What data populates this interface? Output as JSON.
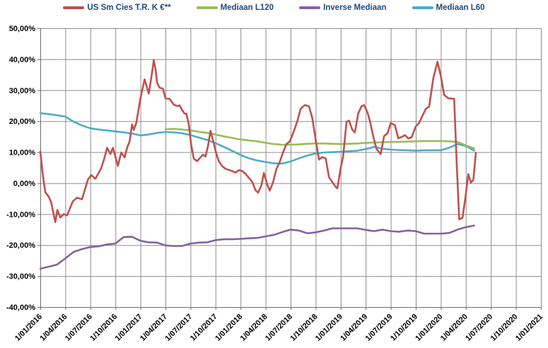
{
  "legend": {
    "position": "top",
    "items": [
      {
        "label": "US Sm Cies T.R. K €**",
        "color": "#C0504D"
      },
      {
        "label": "Mediaan L120",
        "color": "#9BBB59"
      },
      {
        "label": "Inverse Mediaan",
        "color": "#8064A2"
      },
      {
        "label": "Mediaan L60",
        "color": "#4BACC6"
      }
    ]
  },
  "colors": {
    "red_series": "#C0504D",
    "green_series": "#9BBB59",
    "purple_series": "#8064A2",
    "teal_series": "#4BACC6",
    "gridline": "#8C8C8C",
    "axis": "#6E6E6E",
    "tick_text": "#000000",
    "legend_text": "#1F497D",
    "background": "#FFFFFF"
  },
  "chart_data": {
    "type": "line",
    "title": "",
    "grid": true,
    "legend_position": "top",
    "x_unit": "months since 1/01/2016 (0 = 1/01/2016, 60 = 1/01/2021)",
    "x_range_months": [
      0,
      60
    ],
    "ylim": [
      -40,
      50
    ],
    "y_step": 10,
    "y_tick_labels": [
      "50,00%",
      "40,00%",
      "30,00%",
      "20,00%",
      "10,00%",
      "0,00%",
      "-10,00%",
      "-20,00%",
      "-30,00%",
      "-40,00%"
    ],
    "x_tick_labels": [
      "1/01/2016",
      "1/04/2016",
      "1/07/2016",
      "1/10/2016",
      "1/01/2017",
      "1/04/2017",
      "1/07/2017",
      "1/10/2017",
      "1/01/2018",
      "1/04/2018",
      "1/07/2018",
      "1/10/2018",
      "1/01/2019",
      "1/04/2019",
      "1/07/2019",
      "1/10/2019",
      "1/01/2020",
      "1/04/2020",
      "1/07/2020",
      "1/10/2020",
      "1/01/2021"
    ],
    "x_tick_step_months": 3,
    "series": [
      {
        "name": "Inverse Mediaan",
        "color": "#8064A2",
        "start_month": 0,
        "step_months": 1,
        "values": [
          -27.6,
          -27.0,
          -26.3,
          -24.3,
          -22.2,
          -21.3,
          -20.6,
          -20.4,
          -19.8,
          -19.5,
          -17.4,
          -17.3,
          -18.6,
          -19.1,
          -19.2,
          -20.1,
          -20.3,
          -20.3,
          -19.5,
          -19.2,
          -19.1,
          -18.4,
          -18.1,
          -18.1,
          -18.0,
          -17.8,
          -17.7,
          -17.2,
          -16.7,
          -15.8,
          -15.0,
          -15.3,
          -16.2,
          -15.9,
          -15.3,
          -14.6,
          -14.6,
          -14.6,
          -14.6,
          -15.1,
          -15.5,
          -15.0,
          -15.5,
          -15.7,
          -15.3,
          -15.5,
          -16.3,
          -16.3,
          -16.3,
          -16.1,
          -15.0,
          -14.2,
          -13.7
        ]
      },
      {
        "name": "Mediaan L60",
        "color": "#4BACC6",
        "start_month": 0,
        "step_months": 1,
        "values": [
          22.6,
          22.3,
          21.9,
          21.5,
          19.8,
          18.6,
          17.7,
          17.3,
          17.0,
          16.7,
          16.4,
          16.0,
          15.4,
          15.7,
          16.2,
          16.5,
          16.4,
          16.1,
          15.5,
          14.7,
          13.9,
          12.9,
          11.7,
          10.4,
          9.1,
          8.0,
          7.3,
          6.8,
          6.4,
          6.3,
          7.0,
          8.0,
          8.9,
          9.6,
          9.9,
          10.0,
          10.1,
          10.3,
          10.5,
          11.0,
          11.7,
          11.1,
          10.8,
          10.7,
          10.6,
          10.5,
          10.6,
          10.6,
          10.6,
          11.4,
          12.6,
          12.0,
          10.5
        ]
      },
      {
        "name": "Mediaan L120",
        "color": "#9BBB59",
        "start_month": 15,
        "step_months": 1,
        "values": [
          17.4,
          17.5,
          17.3,
          17.0,
          16.6,
          16.2,
          15.7,
          15.1,
          14.6,
          14.1,
          13.8,
          13.5,
          13.0,
          12.6,
          12.4,
          12.4,
          12.5,
          12.7,
          12.8,
          12.8,
          12.7,
          12.6,
          12.7,
          12.8,
          13.0,
          13.1,
          13.2,
          13.3,
          13.3,
          13.4,
          13.5,
          13.6,
          13.6,
          13.6,
          13.5,
          13.3,
          12.2,
          11.2
        ]
      },
      {
        "name": "US Sm Cies T.R. K €**",
        "color": "#C0504D",
        "points": [
          [
            0,
            10.2
          ],
          [
            0.3,
            2.7
          ],
          [
            0.6,
            -3.0
          ],
          [
            1,
            -4.3
          ],
          [
            1.3,
            -6.1
          ],
          [
            1.8,
            -12.6
          ],
          [
            2.05,
            -8.7
          ],
          [
            2.4,
            -11.1
          ],
          [
            2.8,
            -10.0
          ],
          [
            3.2,
            -10.4
          ],
          [
            3.9,
            -5.9
          ],
          [
            4.4,
            -4.7
          ],
          [
            5,
            -5.2
          ],
          [
            5.7,
            1.1
          ],
          [
            6.1,
            2.6
          ],
          [
            6.6,
            1.4
          ],
          [
            7.3,
            4.8
          ],
          [
            7.7,
            8.3
          ],
          [
            8,
            11.4
          ],
          [
            8.4,
            9.4
          ],
          [
            8.7,
            11.4
          ],
          [
            9.3,
            5.6
          ],
          [
            9.7,
            9.9
          ],
          [
            10.1,
            8.3
          ],
          [
            10.4,
            11.4
          ],
          [
            10.7,
            13.5
          ],
          [
            11,
            19.0
          ],
          [
            11.2,
            17.2
          ],
          [
            11.5,
            19.4
          ],
          [
            12,
            27.4
          ],
          [
            12.5,
            33.5
          ],
          [
            13,
            28.9
          ],
          [
            13.4,
            35.8
          ],
          [
            13.6,
            39.7
          ],
          [
            13.8,
            37.0
          ],
          [
            14,
            32.4
          ],
          [
            14.3,
            30.8
          ],
          [
            14.7,
            30.5
          ],
          [
            15,
            27.4
          ],
          [
            15.5,
            27.2
          ],
          [
            16,
            25.3
          ],
          [
            16.4,
            24.9
          ],
          [
            16.7,
            25.1
          ],
          [
            17,
            23.6
          ],
          [
            17.3,
            22.4
          ],
          [
            17.5,
            22.4
          ],
          [
            17.8,
            19.0
          ],
          [
            18.1,
            12.0
          ],
          [
            18.4,
            7.9
          ],
          [
            18.8,
            7.1
          ],
          [
            19.1,
            8.0
          ],
          [
            19.5,
            9.2
          ],
          [
            19.8,
            8.6
          ],
          [
            20.1,
            12.0
          ],
          [
            20.4,
            16.9
          ],
          [
            20.8,
            12.8
          ],
          [
            21.1,
            9.4
          ],
          [
            21.4,
            7.1
          ],
          [
            21.8,
            5.5
          ],
          [
            22.2,
            4.6
          ],
          [
            22.6,
            4.3
          ],
          [
            23,
            3.9
          ],
          [
            23.4,
            3.4
          ],
          [
            23.8,
            4.2
          ],
          [
            24.2,
            3.9
          ],
          [
            24.6,
            3.0
          ],
          [
            25,
            1.7
          ],
          [
            25.4,
            0.4
          ],
          [
            25.8,
            -2.3
          ],
          [
            26.1,
            -3.1
          ],
          [
            26.5,
            -0.7
          ],
          [
            26.8,
            3.3
          ],
          [
            27.2,
            -0.5
          ],
          [
            27.5,
            -2.4
          ],
          [
            27.9,
            0.3
          ],
          [
            28.3,
            4.6
          ],
          [
            28.7,
            6.9
          ],
          [
            29.1,
            10.0
          ],
          [
            29.5,
            12.6
          ],
          [
            29.9,
            13.5
          ],
          [
            30.3,
            16.1
          ],
          [
            30.8,
            19.9
          ],
          [
            31.2,
            24.0
          ],
          [
            31.7,
            25.2
          ],
          [
            32.2,
            24.8
          ],
          [
            32.6,
            21.0
          ],
          [
            33,
            14.0
          ],
          [
            33.4,
            7.6
          ],
          [
            33.8,
            8.4
          ],
          [
            34.2,
            8.0
          ],
          [
            34.6,
            1.9
          ],
          [
            35.4,
            -1.2
          ],
          [
            35.6,
            -1.7
          ],
          [
            36,
            4.9
          ],
          [
            36.3,
            8.7
          ],
          [
            36.7,
            19.8
          ],
          [
            37,
            20.2
          ],
          [
            37.4,
            17.2
          ],
          [
            37.7,
            16.4
          ],
          [
            38.1,
            22.5
          ],
          [
            38.5,
            24.8
          ],
          [
            38.8,
            25.2
          ],
          [
            39.2,
            22.9
          ],
          [
            39.5,
            20.1
          ],
          [
            39.9,
            15.2
          ],
          [
            40.3,
            11.0
          ],
          [
            40.8,
            9.4
          ],
          [
            41.2,
            15.2
          ],
          [
            41.6,
            16.0
          ],
          [
            42,
            19.4
          ],
          [
            42.5,
            18.7
          ],
          [
            42.9,
            14.5
          ],
          [
            43.3,
            14.9
          ],
          [
            43.7,
            15.5
          ],
          [
            44.1,
            14.4
          ],
          [
            44.5,
            14.8
          ],
          [
            45,
            18.3
          ],
          [
            45.4,
            19.4
          ],
          [
            45.8,
            21.7
          ],
          [
            46.2,
            24.0
          ],
          [
            46.6,
            24.7
          ],
          [
            47.1,
            33.9
          ],
          [
            47.6,
            39.2
          ],
          [
            48,
            34.6
          ],
          [
            48.4,
            28.5
          ],
          [
            48.9,
            27.4
          ],
          [
            49.6,
            27.2
          ],
          [
            49.9,
            7.0
          ],
          [
            50.2,
            -11.7
          ],
          [
            50.6,
            -11.2
          ],
          [
            51,
            -3.6
          ],
          [
            51.3,
            2.9
          ],
          [
            51.6,
            0.2
          ],
          [
            51.9,
            1.0
          ],
          [
            52.2,
            9.8
          ]
        ]
      }
    ]
  }
}
